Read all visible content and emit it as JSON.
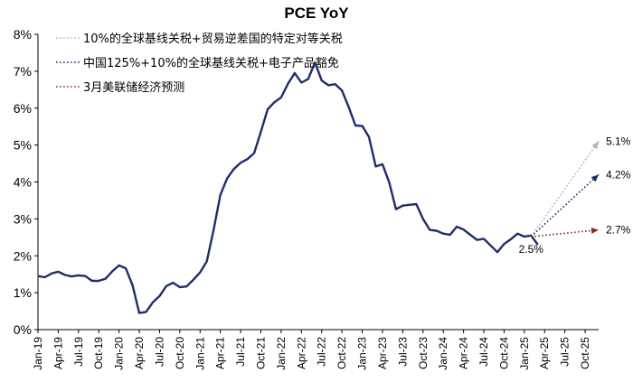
{
  "chart_data": {
    "type": "line",
    "title": "PCE YoY",
    "xlabel": "",
    "ylabel": "",
    "ylim": [
      0,
      8
    ],
    "y_ticks": [
      "0%",
      "1%",
      "2%",
      "3%",
      "4%",
      "5%",
      "6%",
      "7%",
      "8%"
    ],
    "x_tick_labels": [
      "Jan-19",
      "Apr-19",
      "Jul-19",
      "Oct-19",
      "Jan-20",
      "Apr-20",
      "Jul-20",
      "Oct-20",
      "Jan-21",
      "Apr-21",
      "Jul-21",
      "Oct-21",
      "Jan-22",
      "Apr-22",
      "Jul-22",
      "Oct-22",
      "Jan-23",
      "Apr-23",
      "Jul-23",
      "Oct-23",
      "Jan-24",
      "Apr-24",
      "Jul-24",
      "Oct-24",
      "Jan-25",
      "Apr-25",
      "Jul-25",
      "Oct-25"
    ],
    "grid": false,
    "legend_position": "top-left",
    "series": [
      {
        "color": "#1f2d6b",
        "x": [
          "2019-01",
          "2019-02",
          "2019-03",
          "2019-04",
          "2019-05",
          "2019-06",
          "2019-07",
          "2019-08",
          "2019-09",
          "2019-10",
          "2019-11",
          "2019-12",
          "2020-01",
          "2020-02",
          "2020-03",
          "2020-04",
          "2020-05",
          "2020-06",
          "2020-07",
          "2020-08",
          "2020-09",
          "2020-10",
          "2020-11",
          "2020-12",
          "2021-01",
          "2021-02",
          "2021-03",
          "2021-04",
          "2021-05",
          "2021-06",
          "2021-07",
          "2021-08",
          "2021-09",
          "2021-10",
          "2021-11",
          "2021-12",
          "2022-01",
          "2022-02",
          "2022-03",
          "2022-04",
          "2022-05",
          "2022-06",
          "2022-07",
          "2022-08",
          "2022-09",
          "2022-10",
          "2022-11",
          "2022-12",
          "2023-01",
          "2023-02",
          "2023-03",
          "2023-04",
          "2023-05",
          "2023-06",
          "2023-07",
          "2023-08",
          "2023-09",
          "2023-10",
          "2023-11",
          "2023-12",
          "2024-01",
          "2024-02",
          "2024-03",
          "2024-04",
          "2024-05",
          "2024-06",
          "2024-07",
          "2024-08",
          "2024-09",
          "2024-10",
          "2024-11",
          "2024-12",
          "2025-01",
          "2025-02",
          "2025-03"
        ],
        "values": [
          1.45,
          1.42,
          1.52,
          1.57,
          1.48,
          1.44,
          1.47,
          1.45,
          1.32,
          1.32,
          1.38,
          1.58,
          1.74,
          1.66,
          1.2,
          0.45,
          0.48,
          0.74,
          0.91,
          1.18,
          1.27,
          1.15,
          1.17,
          1.35,
          1.55,
          1.85,
          2.7,
          3.65,
          4.1,
          4.35,
          4.52,
          4.62,
          4.78,
          5.36,
          5.97,
          6.16,
          6.29,
          6.66,
          6.95,
          6.69,
          6.79,
          7.24,
          6.75,
          6.62,
          6.65,
          6.48,
          6.03,
          5.53,
          5.52,
          5.22,
          4.42,
          4.48,
          3.99,
          3.26,
          3.36,
          3.38,
          3.4,
          3.0,
          2.7,
          2.68,
          2.6,
          2.57,
          2.79,
          2.71,
          2.57,
          2.43,
          2.46,
          2.28,
          2.1,
          2.32,
          2.45,
          2.6,
          2.52,
          2.55,
          2.3
        ]
      },
      {
        "name": "10%的全球基线关税+贸易逆差国的特定对等关税",
        "color": "#b3b3b3",
        "style": "dotted",
        "x": [
          "2025-02",
          "2025-12"
        ],
        "values": [
          2.52,
          5.1
        ]
      },
      {
        "name": "中国125%+10%的全球基线关税+电子产品豁免",
        "color": "#1f2d6b",
        "style": "dotted",
        "x": [
          "2025-02",
          "2025-12"
        ],
        "values": [
          2.52,
          4.2
        ]
      },
      {
        "name": "3月美联储经济预测",
        "color": "#8b2a1e",
        "style": "dotted",
        "x": [
          "2025-02",
          "2025-12"
        ],
        "values": [
          2.52,
          2.7
        ]
      }
    ],
    "annotations": [
      {
        "text": "5.1%",
        "x": "2025-12",
        "y": 5.1
      },
      {
        "text": "4.2%",
        "x": "2025-12",
        "y": 4.2
      },
      {
        "text": "2.7%",
        "x": "2025-12",
        "y": 2.7
      },
      {
        "text": "2.5%",
        "x": "2025-02",
        "y": 2.52
      }
    ]
  }
}
